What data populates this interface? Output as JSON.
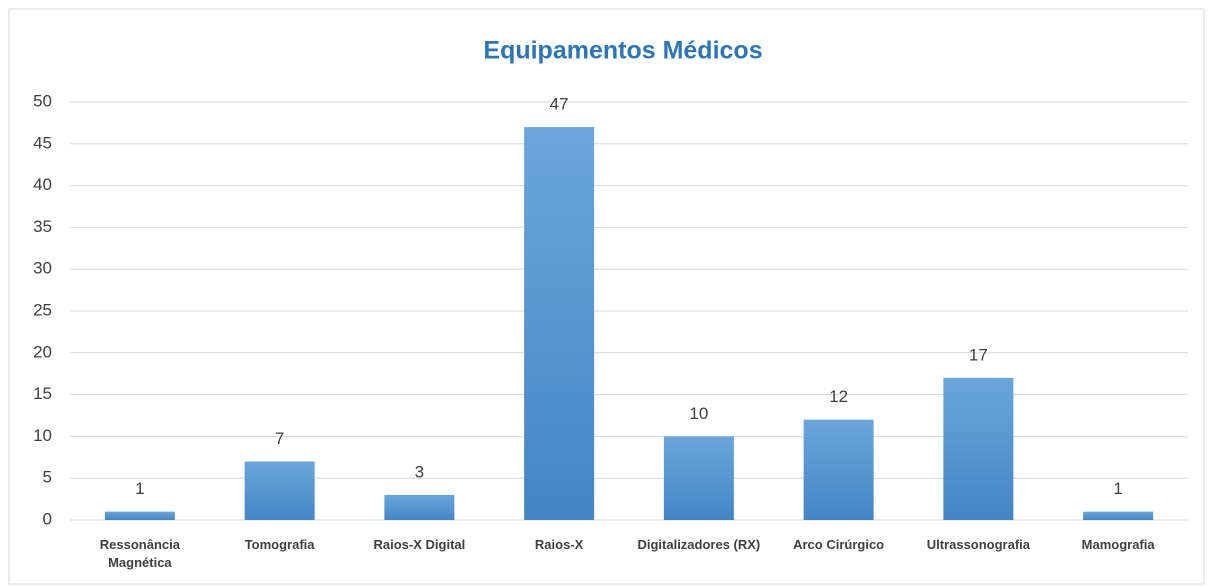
{
  "chart_data": {
    "type": "bar",
    "title": "Equipamentos Médicos",
    "categories": [
      "Ressonância Magnética",
      "Tomografia",
      "Raios-X Digital",
      "Raios-X",
      "Digitalizadores (RX)",
      "Arco Cirúrgico",
      "Ultrassonografia",
      "Mamografia"
    ],
    "values": [
      1,
      7,
      3,
      47,
      10,
      12,
      17,
      1
    ],
    "color": "#5b9bd5",
    "ylim": [
      0,
      50
    ],
    "yticks": [
      0,
      5,
      10,
      15,
      20,
      25,
      30,
      35,
      40,
      45,
      50
    ],
    "grid": true
  }
}
